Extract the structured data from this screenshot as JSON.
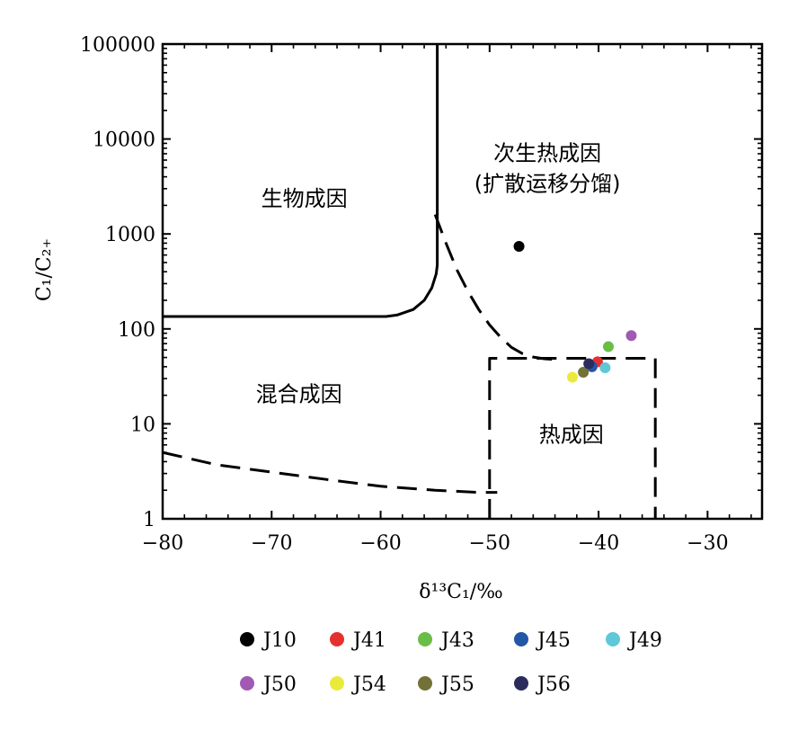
{
  "chart_data": {
    "type": "scatter",
    "title": "",
    "xlabel": "δ¹³C₁/‰",
    "ylabel": "C₁/C₂₊",
    "xlim": [
      -80,
      -25
    ],
    "ylim": [
      1,
      100000
    ],
    "y_scale": "log",
    "x_ticks": [
      -80,
      -70,
      -60,
      -50,
      -40,
      -30
    ],
    "x_tick_labels": [
      "−80",
      "−70",
      "−60",
      "−50",
      "−40",
      "−30"
    ],
    "y_ticks": [
      1,
      10,
      100,
      1000,
      10000,
      100000
    ],
    "y_tick_labels": [
      "1",
      "10",
      "100",
      "1000",
      "10000",
      "100000"
    ],
    "regions": [
      {
        "label": "生物成因",
        "x": -67,
        "y": 2300
      },
      {
        "label": "次生热成因",
        "x": -44.7,
        "y": 6900
      },
      {
        "label": "(扩散运移分馏)",
        "x": -44.7,
        "y": 3300
      },
      {
        "label": "混合成因",
        "x": -67.5,
        "y": 20
      },
      {
        "label": "热成因",
        "x": -42.5,
        "y": 7.5
      }
    ],
    "boundaries": [
      {
        "style": "solid",
        "points": [
          [
            -54.8,
            100000
          ],
          [
            -54.8,
            470
          ],
          [
            -54.9,
            380
          ],
          [
            -55.3,
            270
          ],
          [
            -56,
            200
          ],
          [
            -57,
            160
          ],
          [
            -58.5,
            140
          ],
          [
            -59.5,
            135
          ],
          [
            -80,
            135
          ]
        ]
      },
      {
        "style": "dashed",
        "points": [
          [
            -55,
            1600
          ],
          [
            -54,
            800
          ],
          [
            -53,
            420
          ],
          [
            -52,
            250
          ],
          [
            -51,
            160
          ],
          [
            -50,
            110
          ],
          [
            -49,
            82
          ],
          [
            -48,
            64
          ],
          [
            -47,
            55
          ],
          [
            -46,
            50.5
          ],
          [
            -45,
            48.5
          ],
          [
            -44,
            47.5
          ]
        ]
      },
      {
        "style": "dashed",
        "points": [
          [
            -80,
            5
          ],
          [
            -75,
            3.7
          ],
          [
            -70,
            3.1
          ],
          [
            -65,
            2.6
          ],
          [
            -60,
            2.2
          ],
          [
            -55,
            2.0
          ],
          [
            -51,
            1.9
          ],
          [
            -49.3,
            1.9
          ]
        ]
      },
      {
        "style": "dashed",
        "points": [
          [
            -50,
            1
          ],
          [
            -50,
            49
          ],
          [
            -34.8,
            49
          ],
          [
            -34.8,
            1
          ]
        ]
      }
    ],
    "series": [
      {
        "name": "J10",
        "color": "#000000",
        "points": [
          [
            -47.3,
            740
          ]
        ]
      },
      {
        "name": "J41",
        "color": "#e53030",
        "points": [
          [
            -40.1,
            45
          ]
        ]
      },
      {
        "name": "J43",
        "color": "#6abd45",
        "points": [
          [
            -39.1,
            65
          ]
        ]
      },
      {
        "name": "J45",
        "color": "#2456a6",
        "points": [
          [
            -40.6,
            40
          ]
        ]
      },
      {
        "name": "J49",
        "color": "#5ec8d8",
        "points": [
          [
            -39.4,
            39
          ]
        ]
      },
      {
        "name": "J50",
        "color": "#a05ab4",
        "points": [
          [
            -37,
            85
          ]
        ]
      },
      {
        "name": "J54",
        "color": "#eaea3c",
        "points": [
          [
            -42.4,
            31
          ]
        ]
      },
      {
        "name": "J55",
        "color": "#727238",
        "points": [
          [
            -41.4,
            35
          ]
        ]
      },
      {
        "name": "J56",
        "color": "#2c2c5c",
        "points": [
          [
            -40.9,
            43
          ]
        ]
      }
    ],
    "legend": {
      "placement": "bottom",
      "rows": [
        [
          "J10",
          "J41",
          "J43",
          "J45",
          "J49"
        ],
        [
          "J50",
          "J54",
          "J55",
          "J56"
        ]
      ]
    }
  }
}
